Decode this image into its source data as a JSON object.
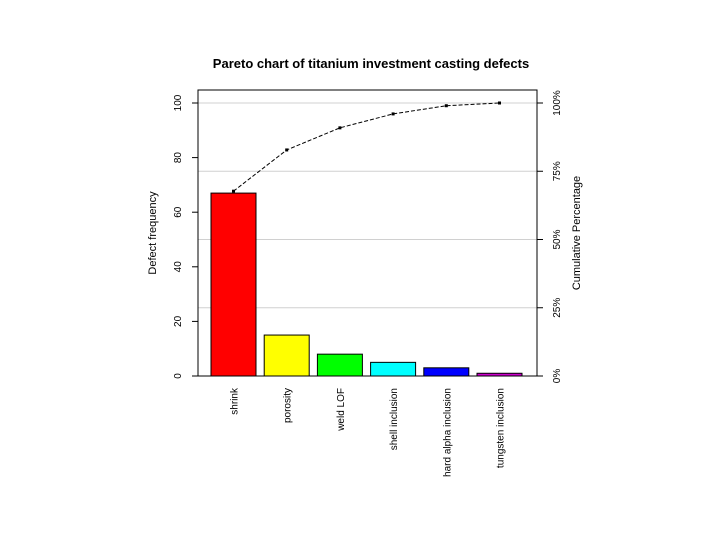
{
  "chart_data": {
    "type": "bar",
    "title": "Pareto chart of titanium investment casting defects",
    "ylabel": "Defect frequency",
    "y2label": "Cumulative Percentage",
    "categories": [
      "shrink",
      "porosity",
      "weld LOF",
      "shell inclusion",
      "hard alpha inclusion",
      "tungsten inclusion"
    ],
    "values": [
      67,
      15,
      8,
      5,
      3,
      1
    ],
    "colors": [
      "#ff0000",
      "#ffff00",
      "#00ff00",
      "#00ffff",
      "#0000ff",
      "#cc00cc"
    ],
    "cumulative_percent": [
      67.7,
      82.8,
      90.9,
      96.0,
      99.0,
      100.0
    ],
    "ylim": [
      0,
      101
    ],
    "yticks": [
      "0",
      "20",
      "40",
      "60",
      "80",
      "100"
    ],
    "y2ticks": [
      "0%",
      "25%",
      "50%",
      "75%",
      "100%"
    ],
    "grid": "horizontal lines at 25% steps of cumulative scale"
  }
}
